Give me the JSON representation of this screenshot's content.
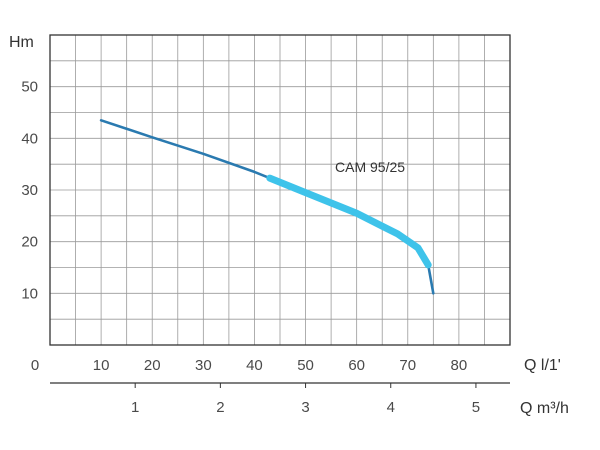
{
  "chart_data": {
    "type": "line",
    "title": "",
    "ylabel": "Hm",
    "xlabel": "Q l/1'",
    "x2label": "Q m³/h",
    "x_zero_label": "0",
    "xlim": [
      0,
      90
    ],
    "ylim": [
      0,
      60
    ],
    "x_ticks": [
      {
        "value": 10,
        "label": "10"
      },
      {
        "value": 20,
        "label": "20"
      },
      {
        "value": 30,
        "label": "30"
      },
      {
        "value": 40,
        "label": "40"
      },
      {
        "value": 50,
        "label": "50"
      },
      {
        "value": 60,
        "label": "60"
      },
      {
        "value": 70,
        "label": "70"
      },
      {
        "value": 80,
        "label": "80"
      }
    ],
    "x2_ticks": [
      {
        "value": 1,
        "label": "1"
      },
      {
        "value": 2,
        "label": "2"
      },
      {
        "value": 3,
        "label": "3"
      },
      {
        "value": 4,
        "label": "4"
      },
      {
        "value": 5,
        "label": "5"
      }
    ],
    "y_ticks": [
      {
        "value": 10,
        "label": "10"
      },
      {
        "value": 20,
        "label": "20"
      },
      {
        "value": 30,
        "label": "30"
      },
      {
        "value": 40,
        "label": "40"
      },
      {
        "value": 50,
        "label": "50"
      }
    ],
    "grid": true,
    "series": [
      {
        "name": "CAM 95/25",
        "color": "#2a7ab0",
        "highlight_color": "#3ec3ea",
        "highlight_from_x": 43,
        "points": [
          {
            "x": 10,
            "y": 43.5
          },
          {
            "x": 20,
            "y": 40.2
          },
          {
            "x": 30,
            "y": 37.0
          },
          {
            "x": 40,
            "y": 33.5
          },
          {
            "x": 50,
            "y": 29.5
          },
          {
            "x": 60,
            "y": 25.5
          },
          {
            "x": 68,
            "y": 21.5
          },
          {
            "x": 72,
            "y": 18.8
          },
          {
            "x": 74,
            "y": 15.5
          },
          {
            "x": 75,
            "y": 10
          }
        ]
      }
    ]
  }
}
